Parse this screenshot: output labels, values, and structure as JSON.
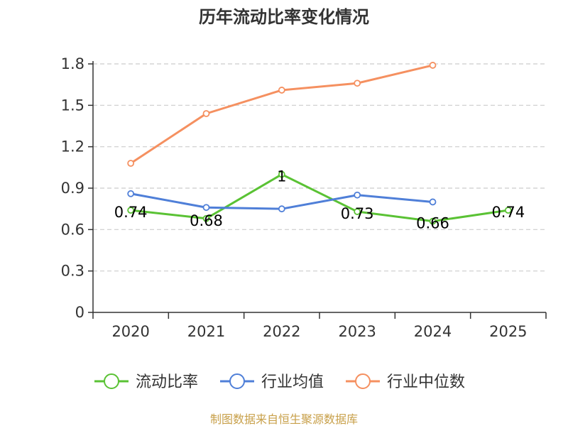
{
  "chart_data": {
    "type": "line",
    "title": "历年流动比率变化情况",
    "categories": [
      "2020",
      "2021",
      "2022",
      "2023",
      "2024",
      "2025"
    ],
    "yticks": [
      "0",
      "0.3",
      "0.6",
      "0.9",
      "1.2",
      "1.5",
      "1.8"
    ],
    "ylim": [
      0,
      1.8
    ],
    "grid": true,
    "legend_position": "bottom",
    "series": [
      {
        "name": "流动比率",
        "color": "#5ac234",
        "values": [
          0.74,
          0.68,
          1,
          0.73,
          0.66,
          0.74
        ],
        "labels": [
          "0.74",
          "0.68",
          "1",
          "0.73",
          "0.66",
          "0.74"
        ]
      },
      {
        "name": "行业均值",
        "color": "#4f7fd8",
        "values": [
          0.86,
          0.76,
          0.75,
          0.85,
          0.8,
          null
        ]
      },
      {
        "name": "行业中位数",
        "color": "#f59060",
        "values": [
          1.08,
          1.44,
          1.61,
          1.66,
          1.79,
          null
        ]
      }
    ],
    "source": "制图数据来自恒生聚源数据库"
  }
}
